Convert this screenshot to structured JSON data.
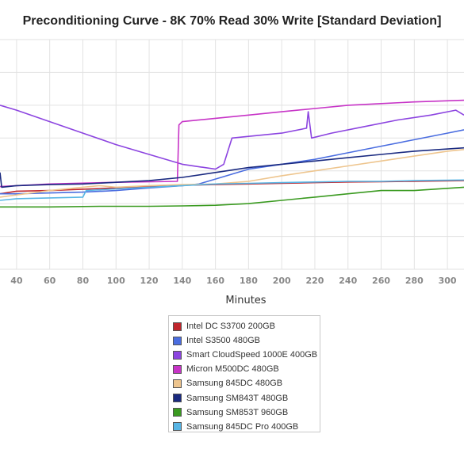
{
  "chart_data": {
    "type": "line",
    "title": "Preconditioning Curve - 8K 70% Read 30% Write [Standard Deviation]",
    "xlabel": "Minutes",
    "ylabel": "",
    "xlim": [
      30,
      310
    ],
    "ylim": [
      0,
      7
    ],
    "x_ticks": [
      "40",
      "60",
      "80",
      "100",
      "120",
      "140",
      "160",
      "180",
      "200",
      "220",
      "240",
      "260",
      "280",
      "300"
    ],
    "grid": true,
    "legend_position": "bottom-center",
    "series": [
      {
        "name": "Intel DC S3700 200GB",
        "color": "#c0262d",
        "points": [
          [
            30,
            2.3
          ],
          [
            40,
            2.38
          ],
          [
            60,
            2.4
          ],
          [
            80,
            2.44
          ],
          [
            100,
            2.48
          ],
          [
            120,
            2.52
          ],
          [
            140,
            2.56
          ],
          [
            160,
            2.58
          ],
          [
            180,
            2.6
          ],
          [
            200,
            2.62
          ],
          [
            220,
            2.64
          ],
          [
            240,
            2.66
          ],
          [
            260,
            2.67
          ],
          [
            280,
            2.68
          ],
          [
            310,
            2.7
          ]
        ]
      },
      {
        "name": "Intel S3500 480GB",
        "color": "#4a6de0",
        "points": [
          [
            30,
            2.3
          ],
          [
            40,
            2.3
          ],
          [
            80,
            2.35
          ],
          [
            100,
            2.4
          ],
          [
            120,
            2.48
          ],
          [
            140,
            2.55
          ],
          [
            150,
            2.6
          ],
          [
            160,
            2.75
          ],
          [
            170,
            2.9
          ],
          [
            180,
            3.05
          ],
          [
            200,
            3.2
          ],
          [
            220,
            3.35
          ],
          [
            240,
            3.55
          ],
          [
            260,
            3.75
          ],
          [
            280,
            3.95
          ],
          [
            300,
            4.15
          ],
          [
            310,
            4.25
          ]
        ]
      },
      {
        "name": "Smart CloudSpeed 1000E 400GB",
        "color": "#8c44e0",
        "points": [
          [
            30,
            5.0
          ],
          [
            40,
            4.85
          ],
          [
            60,
            4.5
          ],
          [
            80,
            4.15
          ],
          [
            100,
            3.8
          ],
          [
            120,
            3.5
          ],
          [
            140,
            3.2
          ],
          [
            160,
            3.05
          ],
          [
            165,
            3.2
          ],
          [
            170,
            4.0
          ],
          [
            180,
            4.05
          ],
          [
            200,
            4.15
          ],
          [
            215,
            4.3
          ],
          [
            216,
            4.8
          ],
          [
            218,
            4.0
          ],
          [
            230,
            4.15
          ],
          [
            250,
            4.35
          ],
          [
            270,
            4.55
          ],
          [
            290,
            4.7
          ],
          [
            305,
            4.85
          ],
          [
            310,
            4.7
          ]
        ]
      },
      {
        "name": "Micron M500DC 480GB",
        "color": "#c734c7",
        "points": [
          [
            30,
            2.52
          ],
          [
            60,
            2.6
          ],
          [
            100,
            2.65
          ],
          [
            137,
            2.68
          ],
          [
            138,
            4.4
          ],
          [
            140,
            4.5
          ],
          [
            160,
            4.6
          ],
          [
            180,
            4.7
          ],
          [
            200,
            4.8
          ],
          [
            220,
            4.9
          ],
          [
            240,
            5.0
          ],
          [
            260,
            5.05
          ],
          [
            280,
            5.1
          ],
          [
            310,
            5.15
          ]
        ]
      },
      {
        "name": "Samsung 845DC 480GB",
        "color": "#eec58e",
        "points": [
          [
            30,
            2.2
          ],
          [
            60,
            2.4
          ],
          [
            80,
            2.5
          ],
          [
            90,
            2.55
          ],
          [
            100,
            2.5
          ],
          [
            120,
            2.55
          ],
          [
            140,
            2.58
          ],
          [
            160,
            2.6
          ],
          [
            180,
            2.68
          ],
          [
            200,
            2.85
          ],
          [
            220,
            3.0
          ],
          [
            240,
            3.15
          ],
          [
            260,
            3.3
          ],
          [
            280,
            3.45
          ],
          [
            300,
            3.6
          ],
          [
            310,
            3.65
          ]
        ]
      },
      {
        "name": "Samsung SM843T 480GB",
        "color": "#1a2a80",
        "points": [
          [
            30,
            2.95
          ],
          [
            31,
            2.5
          ],
          [
            40,
            2.55
          ],
          [
            60,
            2.58
          ],
          [
            80,
            2.6
          ],
          [
            100,
            2.65
          ],
          [
            120,
            2.7
          ],
          [
            140,
            2.8
          ],
          [
            160,
            2.95
          ],
          [
            180,
            3.1
          ],
          [
            200,
            3.2
          ],
          [
            220,
            3.3
          ],
          [
            240,
            3.4
          ],
          [
            260,
            3.5
          ],
          [
            280,
            3.6
          ],
          [
            310,
            3.7
          ]
        ]
      },
      {
        "name": "Samsung SM853T 960GB",
        "color": "#3a9a20",
        "points": [
          [
            30,
            1.9
          ],
          [
            60,
            1.9
          ],
          [
            90,
            1.92
          ],
          [
            120,
            1.92
          ],
          [
            140,
            1.93
          ],
          [
            160,
            1.95
          ],
          [
            180,
            2.0
          ],
          [
            200,
            2.1
          ],
          [
            220,
            2.2
          ],
          [
            240,
            2.3
          ],
          [
            260,
            2.4
          ],
          [
            280,
            2.4
          ],
          [
            310,
            2.5
          ]
        ]
      },
      {
        "name": "Samsung 845DC Pro 400GB",
        "color": "#57b5e5",
        "points": [
          [
            30,
            2.1
          ],
          [
            40,
            2.15
          ],
          [
            80,
            2.2
          ],
          [
            82,
            2.4
          ],
          [
            100,
            2.45
          ],
          [
            120,
            2.5
          ],
          [
            140,
            2.55
          ],
          [
            160,
            2.6
          ],
          [
            180,
            2.62
          ],
          [
            200,
            2.64
          ],
          [
            220,
            2.66
          ],
          [
            240,
            2.68
          ],
          [
            260,
            2.68
          ],
          [
            280,
            2.7
          ],
          [
            310,
            2.72
          ]
        ]
      }
    ]
  }
}
